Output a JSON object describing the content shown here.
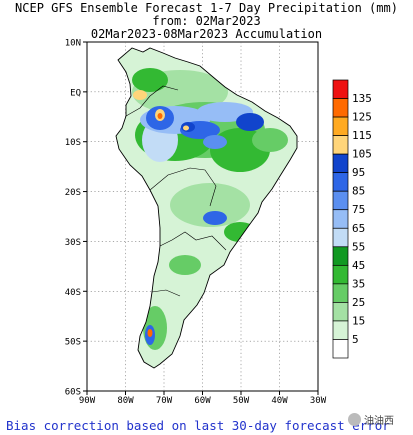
{
  "title": {
    "line1": "NCEP GFS Ensemble Forecast 1-7 Day Precipitation (mm)",
    "line2": "from: 02Mar2023",
    "line3": "02Mar2023-08Mar2023 Accumulation"
  },
  "map": {
    "lat_labels": [
      "10N",
      "EQ",
      "10S",
      "20S",
      "30S",
      "40S",
      "50S",
      "60S"
    ],
    "lon_labels": [
      "90W",
      "80W",
      "70W",
      "60W",
      "50W",
      "40W",
      "30W"
    ],
    "lat_range": [
      10,
      -60
    ],
    "lon_range": [
      -90,
      -30
    ],
    "projection": "equirectangular"
  },
  "legend": {
    "labels": [
      "135",
      "125",
      "115",
      "105",
      "95",
      "85",
      "75",
      "65",
      "55",
      "45",
      "35",
      "25",
      "15",
      "5"
    ],
    "colors": [
      "#ee1111",
      "#ff6a00",
      "#ffaa22",
      "#ffd57a",
      "#1144cc",
      "#2e66e6",
      "#5b8ff0",
      "#96bdf6",
      "#c2dcf6",
      "#119922",
      "#33b933",
      "#66cc66",
      "#a4e1a4",
      "#d6f3d6",
      "#ffffff"
    ]
  },
  "footer": "Bias correction based on last 30-day forecast error",
  "watermark": "油油西"
}
